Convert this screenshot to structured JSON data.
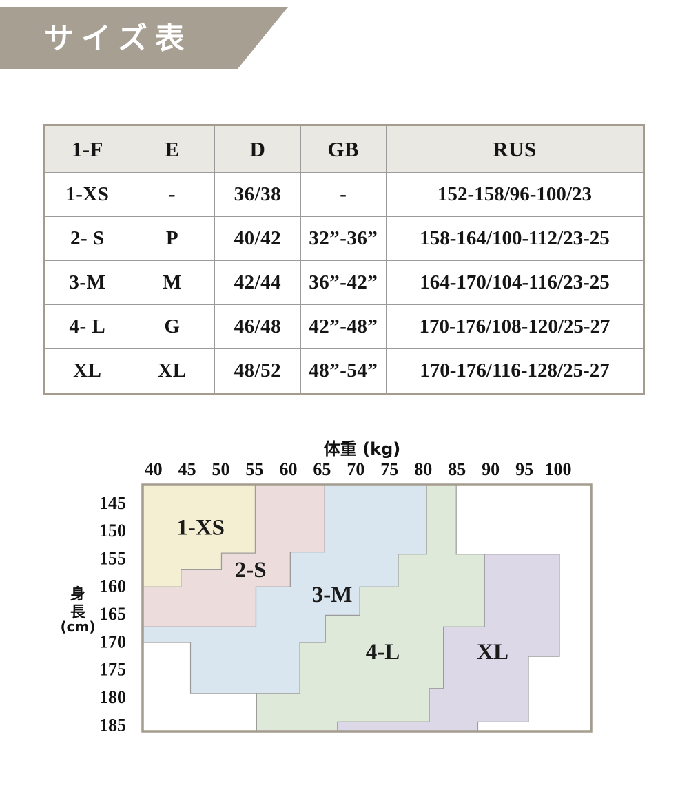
{
  "banner": {
    "title": "サイズ表",
    "background": "#a79f92",
    "text_color": "#ffffff"
  },
  "size_table": {
    "headers": [
      "1-F",
      "E",
      "D",
      "GB",
      "RUS"
    ],
    "header_bg": "#eae8e3",
    "rows": [
      [
        "1-XS",
        "-",
        "36/38",
        "-",
        "152-158/96-100/23"
      ],
      [
        "2- S",
        "P",
        "40/42",
        "32”-36”",
        "158-164/100-112/23-25"
      ],
      [
        "3-M",
        "M",
        "42/44",
        "36”-42”",
        "164-170/104-116/23-25"
      ],
      [
        "4- L",
        "G",
        "46/48",
        "42”-48”",
        "170-176/108-120/25-27"
      ],
      [
        "XL",
        "XL",
        "48/52",
        "48”-54”",
        "170-176/116-128/25-27"
      ]
    ]
  },
  "chart_data": {
    "type": "stepped-region-map",
    "title": "",
    "x_axis": {
      "title": "体重 (kg)",
      "position": "top",
      "ticks": [
        40,
        45,
        50,
        55,
        60,
        65,
        70,
        75,
        80,
        85,
        90,
        95,
        100
      ],
      "range": [
        38.4,
        104.9
      ]
    },
    "y_axis": {
      "title": "身長",
      "unit": "(cm)",
      "direction": "down",
      "ticks": [
        145,
        150,
        155,
        160,
        165,
        170,
        175,
        180,
        185
      ],
      "range": [
        141.8,
        186.2
      ]
    },
    "grid": false,
    "border_color": "#a49c8e",
    "region_edge_color": "#9b9b9b",
    "label_color": "#1a1a1a",
    "regions": [
      {
        "label": "1-XS",
        "color": "#f4eed3",
        "label_at": [
          47.0,
          149.3
        ],
        "polygon": [
          [
            38.4,
            141.8
          ],
          [
            55.1,
            141.8
          ],
          [
            55.1,
            154.1
          ],
          [
            50.1,
            154.1
          ],
          [
            50.1,
            157.0
          ],
          [
            44.1,
            157.0
          ],
          [
            44.1,
            160.2
          ],
          [
            38.4,
            160.2
          ]
        ]
      },
      {
        "label": "2-S",
        "color": "#ecdcdc",
        "label_at": [
          54.4,
          156.9
        ],
        "polygon": [
          [
            55.1,
            141.8
          ],
          [
            65.4,
            141.8
          ],
          [
            65.4,
            153.9
          ],
          [
            60.3,
            153.9
          ],
          [
            60.3,
            160.2
          ],
          [
            55.2,
            160.2
          ],
          [
            55.2,
            167.4
          ],
          [
            38.4,
            167.4
          ],
          [
            38.4,
            160.2
          ],
          [
            44.1,
            160.2
          ],
          [
            44.1,
            157.0
          ],
          [
            50.1,
            157.0
          ],
          [
            50.1,
            154.1
          ],
          [
            55.1,
            154.1
          ]
        ]
      },
      {
        "label": "3-M",
        "color": "#d9e5ef",
        "label_at": [
          66.5,
          161.4
        ],
        "polygon": [
          [
            65.4,
            141.8
          ],
          [
            80.5,
            141.8
          ],
          [
            80.5,
            154.3
          ],
          [
            76.3,
            154.3
          ],
          [
            76.3,
            160.2
          ],
          [
            70.6,
            160.2
          ],
          [
            70.6,
            165.3
          ],
          [
            65.5,
            165.3
          ],
          [
            65.5,
            170.2
          ],
          [
            61.7,
            170.2
          ],
          [
            61.7,
            179.4
          ],
          [
            45.5,
            179.4
          ],
          [
            45.5,
            170.2
          ],
          [
            38.4,
            170.2
          ],
          [
            38.4,
            167.4
          ],
          [
            55.2,
            167.4
          ],
          [
            55.2,
            160.2
          ],
          [
            60.3,
            160.2
          ],
          [
            60.3,
            153.9
          ],
          [
            65.4,
            153.9
          ]
        ]
      },
      {
        "label": "4-L",
        "color": "#dfe9da",
        "label_at": [
          74.0,
          171.7
        ],
        "polygon": [
          [
            80.5,
            141.8
          ],
          [
            84.9,
            141.8
          ],
          [
            84.9,
            154.3
          ],
          [
            89.1,
            154.3
          ],
          [
            89.1,
            167.4
          ],
          [
            83.0,
            167.4
          ],
          [
            83.0,
            178.5
          ],
          [
            80.9,
            178.5
          ],
          [
            80.9,
            184.5
          ],
          [
            67.3,
            184.5
          ],
          [
            67.3,
            186.2
          ],
          [
            55.3,
            186.2
          ],
          [
            55.3,
            179.4
          ],
          [
            61.7,
            179.4
          ],
          [
            61.7,
            170.2
          ],
          [
            65.5,
            170.2
          ],
          [
            65.5,
            165.3
          ],
          [
            70.6,
            165.3
          ],
          [
            70.6,
            160.2
          ],
          [
            76.3,
            160.2
          ],
          [
            76.3,
            154.3
          ],
          [
            80.5,
            154.3
          ]
        ]
      },
      {
        "label": "XL",
        "color": "#ddd8e8",
        "label_at": [
          90.3,
          171.7
        ],
        "polygon": [
          [
            89.1,
            154.3
          ],
          [
            100.2,
            154.3
          ],
          [
            100.2,
            172.7
          ],
          [
            95.6,
            172.7
          ],
          [
            95.6,
            184.5
          ],
          [
            88.1,
            184.5
          ],
          [
            88.1,
            186.2
          ],
          [
            67.3,
            186.2
          ],
          [
            67.3,
            184.5
          ],
          [
            80.9,
            184.5
          ],
          [
            80.9,
            178.5
          ],
          [
            83.0,
            178.5
          ],
          [
            83.0,
            167.4
          ],
          [
            89.1,
            167.4
          ]
        ]
      }
    ]
  }
}
